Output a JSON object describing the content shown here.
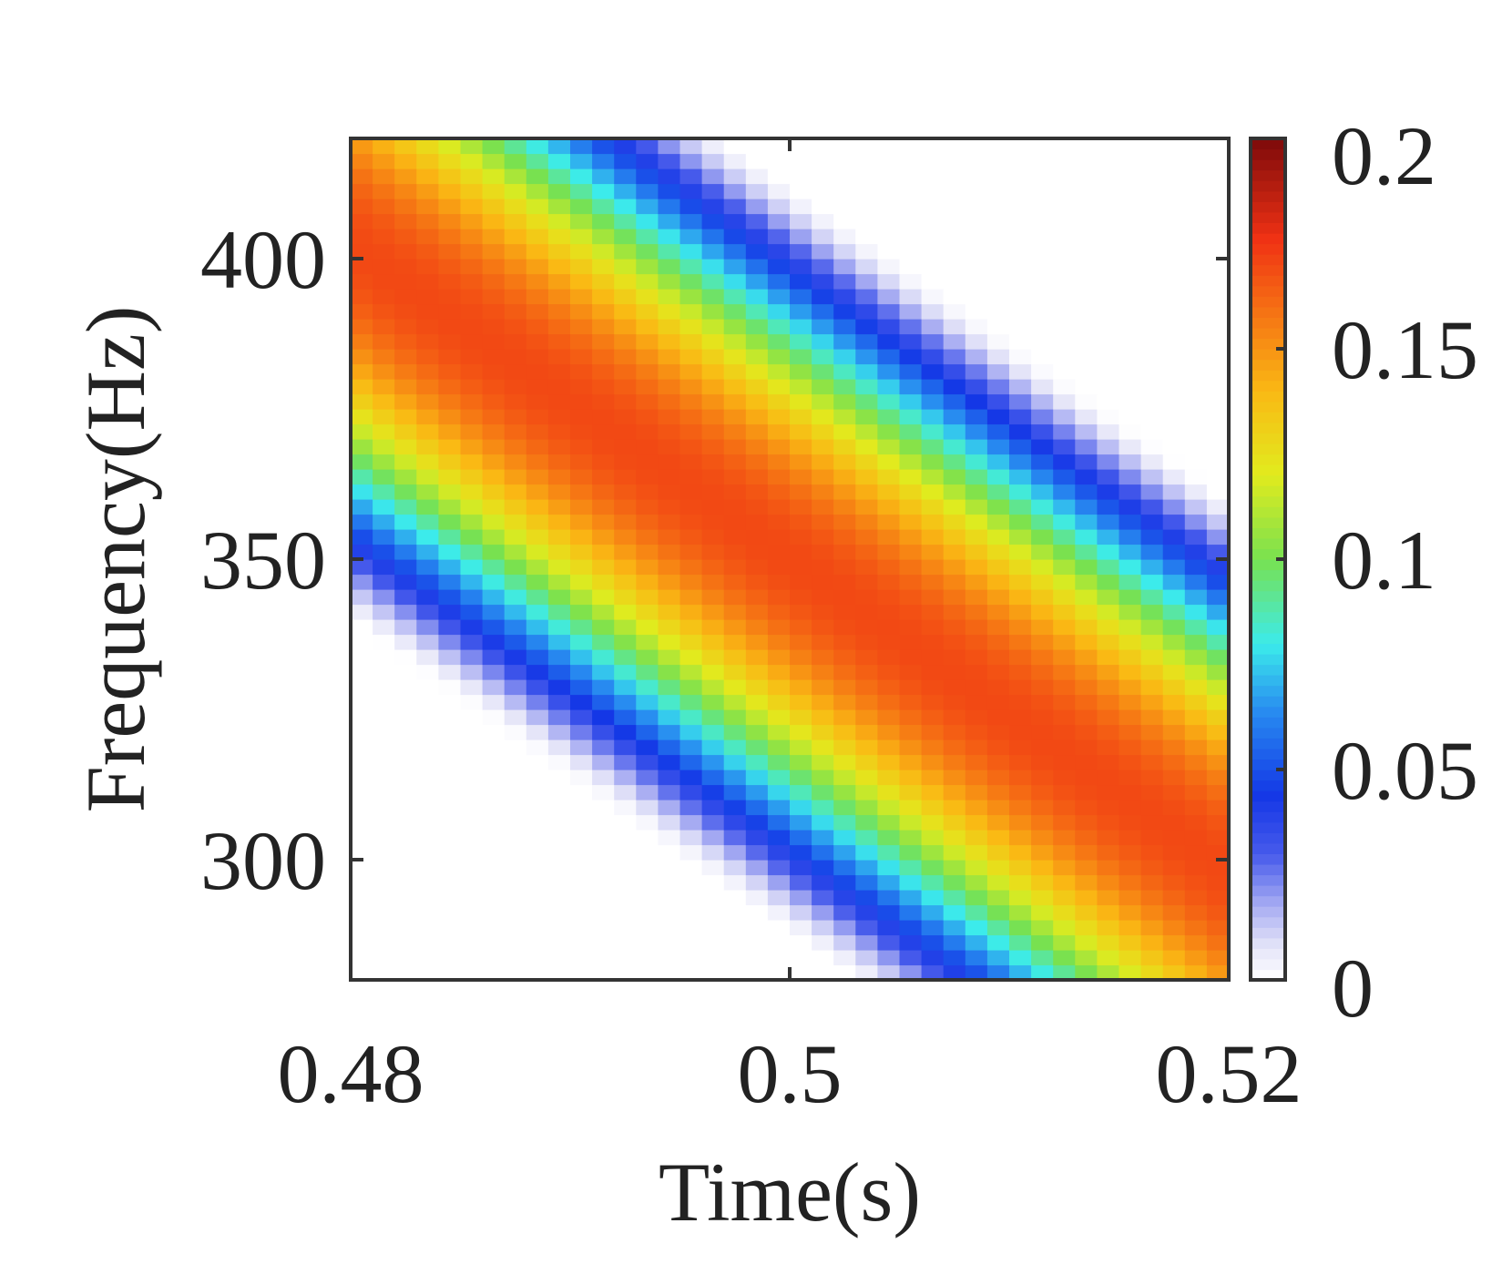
{
  "chart_data": {
    "type": "heatmap",
    "title": "",
    "xlabel": "Time(s)",
    "ylabel": "Frequency(Hz)",
    "xlim": [
      0.48,
      0.52
    ],
    "ylim": [
      280,
      420
    ],
    "x_ticks": [
      {
        "value": 0.48,
        "label": "0.48"
      },
      {
        "value": 0.5,
        "label": "0.5"
      },
      {
        "value": 0.52,
        "label": "0.52"
      }
    ],
    "y_ticks": [
      {
        "value": 300,
        "label": "300"
      },
      {
        "value": 350,
        "label": "350"
      },
      {
        "value": 400,
        "label": "400"
      }
    ],
    "colorbar": {
      "range": [
        0,
        0.2
      ],
      "colormap": "jet-like (white at 0, blue, cyan, green, yellow, orange, red, dark red at 0.2)",
      "ticks": [
        {
          "value": 0,
          "label": "0"
        },
        {
          "value": 0.05,
          "label": "0.05"
        },
        {
          "value": 0.1,
          "label": "0.1"
        },
        {
          "value": 0.15,
          "label": "0.15"
        },
        {
          "value": 0.2,
          "label": "0.2"
        }
      ]
    },
    "ridge": {
      "description": "diagonal ridge of maximum energy falling linearly in frequency over time",
      "start": {
        "time": 0.48,
        "frequency": 402
      },
      "end": {
        "time": 0.52,
        "frequency": 298
      },
      "peak_value": 0.17,
      "edge_value": 0.0
    },
    "grid": false,
    "legend": "colorbar at right"
  }
}
